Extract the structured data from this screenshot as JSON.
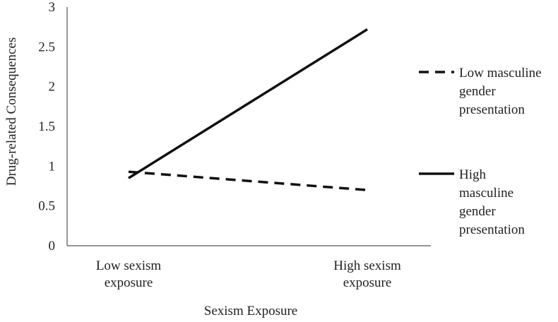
{
  "chart_data": {
    "type": "line",
    "title": "",
    "xlabel": "Sexism Exposure",
    "ylabel": "Drug-related Consequences",
    "categories": [
      [
        "Low sexism",
        "exposure"
      ],
      [
        "High sexism",
        "exposure"
      ]
    ],
    "ylim": [
      0,
      3
    ],
    "yticks": [
      "0",
      "0.5",
      "1",
      "1.5",
      "2",
      "2.5",
      "3"
    ],
    "grid": false,
    "legend_position": "right",
    "series": [
      {
        "name_lines": [
          "Low masculine",
          "gender",
          "presentation"
        ],
        "style": "dashed",
        "color": "#111111",
        "values": [
          0.93,
          0.7
        ]
      },
      {
        "name_lines": [
          "High",
          "masculine",
          "gender",
          "presentation"
        ],
        "style": "solid",
        "color": "#111111",
        "values": [
          0.85,
          2.72
        ]
      }
    ]
  }
}
